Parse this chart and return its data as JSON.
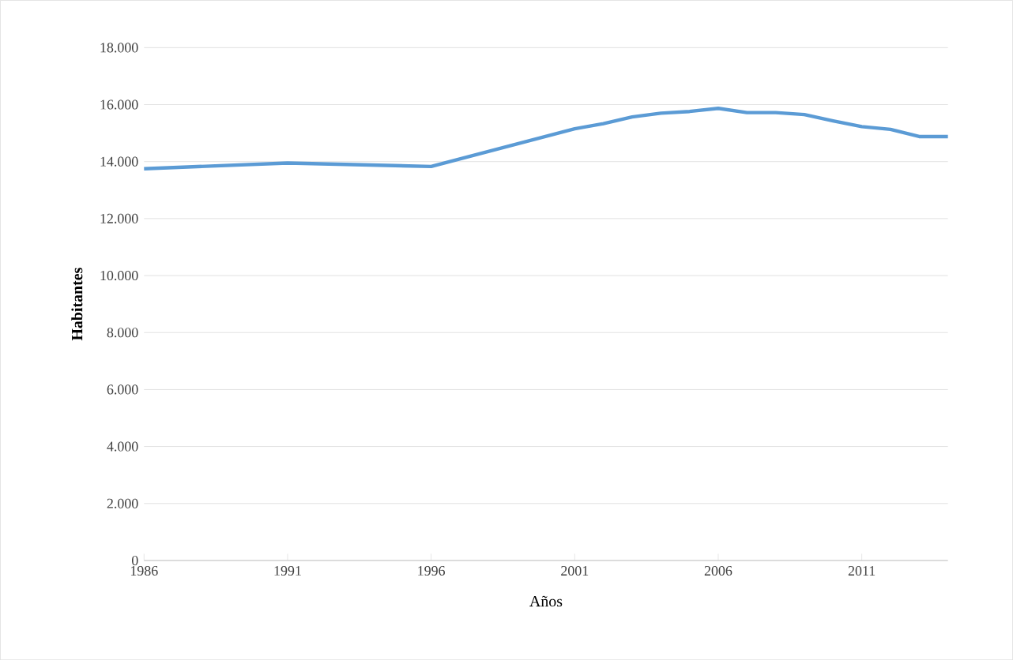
{
  "chart_data": {
    "type": "line",
    "xlabel": "Años",
    "ylabel": "Habitantes",
    "x": [
      1986,
      1991,
      1996,
      2001,
      2002,
      2003,
      2004,
      2005,
      2006,
      2007,
      2008,
      2009,
      2010,
      2011,
      2012,
      2013,
      2014
    ],
    "series": [
      {
        "color": "#5b9bd5",
        "values": [
          13750,
          13950,
          13830,
          15150,
          15330,
          15570,
          15700,
          15760,
          15870,
          15720,
          15720,
          15650,
          15430,
          15230,
          15130,
          14880,
          14880
        ]
      }
    ],
    "xlim": [
      1986,
      2014
    ],
    "xticks": [
      1986,
      1991,
      1996,
      2001,
      2006,
      2011
    ],
    "ylim": [
      0,
      18000
    ],
    "yticks": [
      {
        "value": 0,
        "label": "0"
      },
      {
        "value": 2000,
        "label": "2.000"
      },
      {
        "value": 4000,
        "label": "4.000"
      },
      {
        "value": 6000,
        "label": "6.000"
      },
      {
        "value": 8000,
        "label": "8.000"
      },
      {
        "value": 10000,
        "label": "10.000"
      },
      {
        "value": 12000,
        "label": "12.000"
      },
      {
        "value": 14000,
        "label": "14.000"
      },
      {
        "value": 16000,
        "label": "16.000"
      },
      {
        "value": 18000,
        "label": "18.000"
      }
    ],
    "grid": "y",
    "marker": "none",
    "line_style": "solid"
  }
}
